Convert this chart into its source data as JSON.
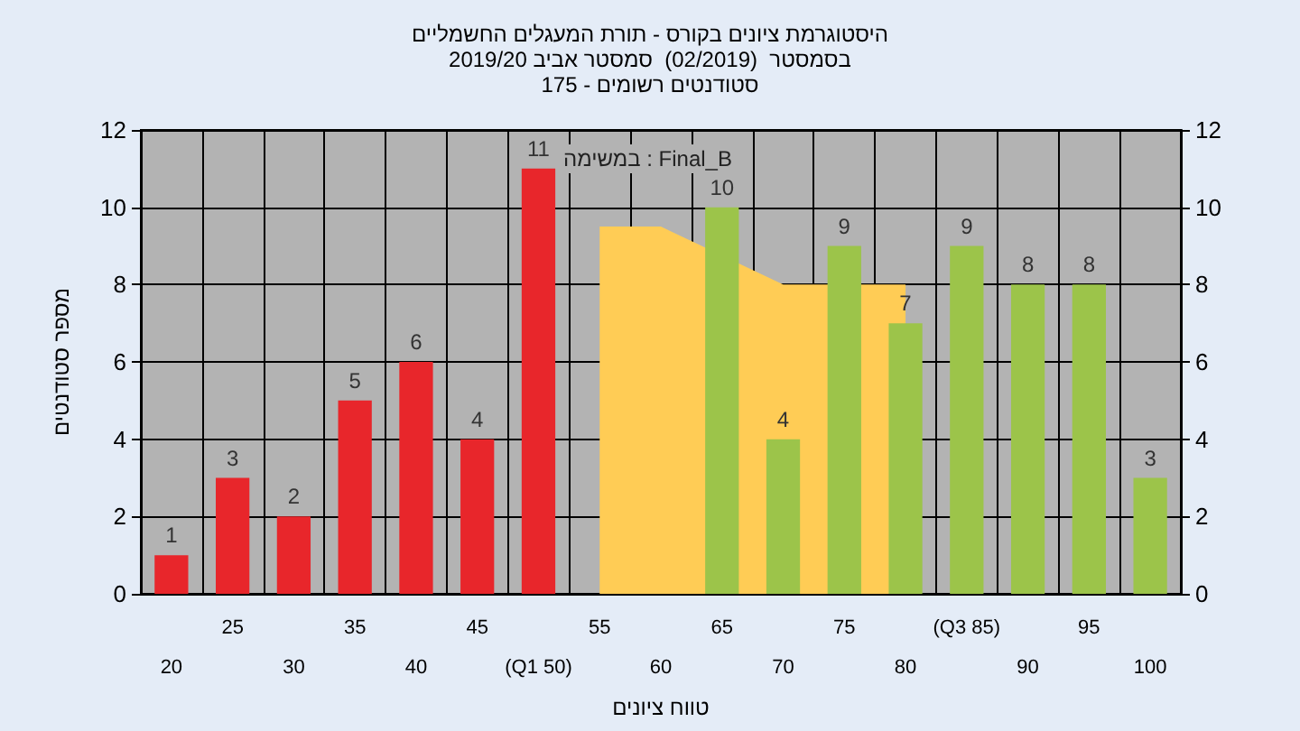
{
  "chart_data": {
    "type": "bar",
    "title": "היסטוגרמת ציונים בקורס - תורת המעגלים החשמליים",
    "subtitle": "בסמסטר  (02/2019)  סמסטר אביב 2019/20\nסטודנטים רשומים - 175",
    "xlabel": "טווח ציונים",
    "ylabel": "מספר סטודנטים",
    "categories": [
      "20",
      "25",
      "30",
      "35",
      "40",
      "45",
      "(Q1 50)",
      "55",
      "60",
      "65",
      "70",
      "75",
      "80",
      "(Q3 85)",
      "90",
      "95",
      "100"
    ],
    "series": [
      {
        "type": "area",
        "color": "#ffcc55",
        "values": [
          null,
          null,
          null,
          null,
          null,
          null,
          null,
          9.5,
          9.5,
          null,
          8,
          null,
          8,
          null,
          null,
          null,
          null
        ]
      },
      {
        "value_labels": [
          "1",
          "3",
          "2",
          "5",
          "6",
          "4",
          "11",
          null,
          null,
          "10",
          "4",
          "9",
          "7",
          "9",
          "8",
          "8",
          "3"
        ],
        "colors": [
          "#e8262b",
          "#e8262b",
          "#e8262b",
          "#e8262b",
          "#e8262b",
          "#e8262b",
          "#e8262b",
          null,
          null,
          "#9cc44a",
          "#9cc44a",
          "#9cc44a",
          "#9cc44a",
          "#9cc44a",
          "#9cc44a",
          "#9cc44a",
          "#9cc44a"
        ],
        "values": [
          1,
          3,
          2,
          5,
          6,
          4,
          11,
          null,
          null,
          10,
          4,
          9,
          7,
          9,
          8,
          8,
          3
        ]
      }
    ],
    "annotations": [
      "במשימה : Final_B"
    ],
    "ylim": [
      0,
      12
    ],
    "yticks": [
      0,
      2,
      4,
      6,
      8,
      10,
      12
    ],
    "y2lim": [
      0,
      12
    ],
    "y2ticks": [
      0,
      2,
      4,
      6,
      8,
      10,
      12
    ],
    "grid": true
  }
}
